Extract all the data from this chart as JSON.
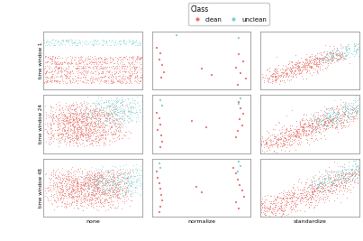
{
  "row_labels": [
    "time window 1",
    "time window 24",
    "time window 48"
  ],
  "col_labels": [
    "none",
    "normalize",
    "standardize"
  ],
  "clean_color": "#E8706A",
  "unclean_color": "#7ECFCF",
  "background": "#FFFFFF",
  "seed": 42,
  "legend_title": "Class",
  "legend_clean": "clean",
  "legend_unclean": "unclean"
}
